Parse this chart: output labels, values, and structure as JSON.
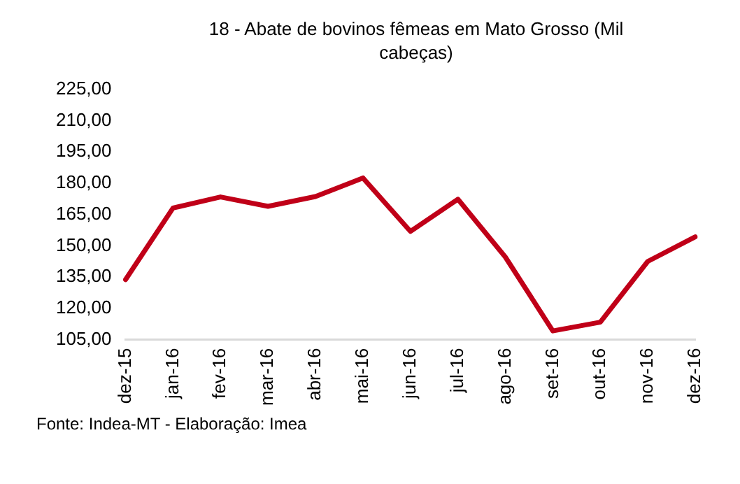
{
  "chart_data": {
    "type": "line",
    "title": "18 - Abate de bovinos fêmeas em Mato Grosso (Mil cabeças)",
    "categories": [
      "dez-15",
      "jan-16",
      "fev-16",
      "mar-16",
      "abr-16",
      "mai-16",
      "jun-16",
      "jul-16",
      "ago-16",
      "set-16",
      "out-16",
      "nov-16",
      "dez-16"
    ],
    "series": [
      {
        "color": "#c00018",
        "values": [
          133.8,
          168.1,
          173.4,
          168.9,
          173.6,
          182.5,
          156.9,
          172.3,
          144.6,
          109.2,
          113.4,
          142.5,
          154.3
        ]
      }
    ],
    "ylim": [
      105,
      225
    ],
    "yticks": [
      {
        "value": 105,
        "label": "105,00"
      },
      {
        "value": 120,
        "label": "120,00"
      },
      {
        "value": 135,
        "label": "135,00"
      },
      {
        "value": 150,
        "label": "150,00"
      },
      {
        "value": 165,
        "label": "165,00"
      },
      {
        "value": 180,
        "label": "180,00"
      },
      {
        "value": 195,
        "label": "195,00"
      },
      {
        "value": 210,
        "label": "210,00"
      },
      {
        "value": 225,
        "label": "225,00"
      }
    ],
    "grid": false,
    "legend": false,
    "marker": "none",
    "line_style": "solid",
    "annotations": [
      "Fonte: Indea-MT - Elaboração: Imea"
    ]
  }
}
